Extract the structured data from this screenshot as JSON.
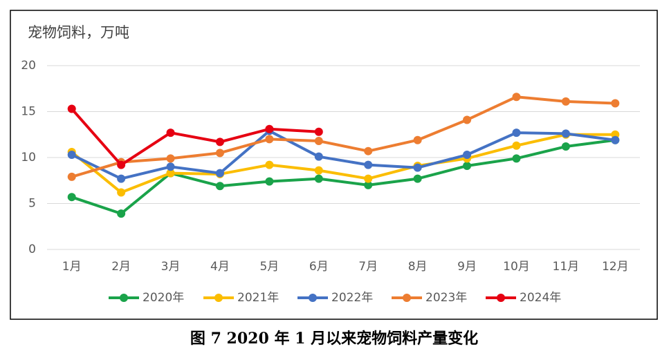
{
  "chart_data": {
    "type": "line",
    "title": "宠物饲料，万吨",
    "caption": "图 7  2020 年 1 月以来宠物饲料产量变化",
    "categories": [
      "1月",
      "2月",
      "3月",
      "4月",
      "5月",
      "6月",
      "7月",
      "8月",
      "9月",
      "10月",
      "11月",
      "12月"
    ],
    "series": [
      {
        "name": "2020年",
        "color": "#1aa34a",
        "values": [
          5.7,
          3.9,
          8.3,
          6.9,
          7.4,
          7.7,
          7.0,
          7.7,
          9.1,
          9.9,
          11.2,
          11.9
        ]
      },
      {
        "name": "2021年",
        "color": "#fbbd00",
        "values": [
          10.6,
          6.2,
          8.3,
          8.2,
          9.2,
          8.6,
          7.7,
          9.1,
          9.9,
          11.3,
          12.5,
          12.5
        ]
      },
      {
        "name": "2022年",
        "color": "#4472c4",
        "values": [
          10.3,
          7.7,
          9.0,
          8.3,
          12.9,
          10.1,
          9.2,
          8.9,
          10.3,
          12.7,
          12.6,
          11.9
        ]
      },
      {
        "name": "2023年",
        "color": "#ed7d31",
        "values": [
          7.9,
          9.5,
          9.9,
          10.5,
          12.0,
          11.8,
          10.7,
          11.9,
          14.1,
          16.6,
          16.1,
          15.9
        ]
      },
      {
        "name": "2024年",
        "color": "#e60012",
        "values": [
          15.3,
          9.2,
          12.7,
          11.7,
          13.1,
          12.8,
          null,
          null,
          null,
          null,
          null,
          null
        ]
      }
    ],
    "ylim": [
      0,
      20
    ],
    "yticks": [
      0,
      5,
      10,
      15,
      20
    ],
    "grid": true
  }
}
